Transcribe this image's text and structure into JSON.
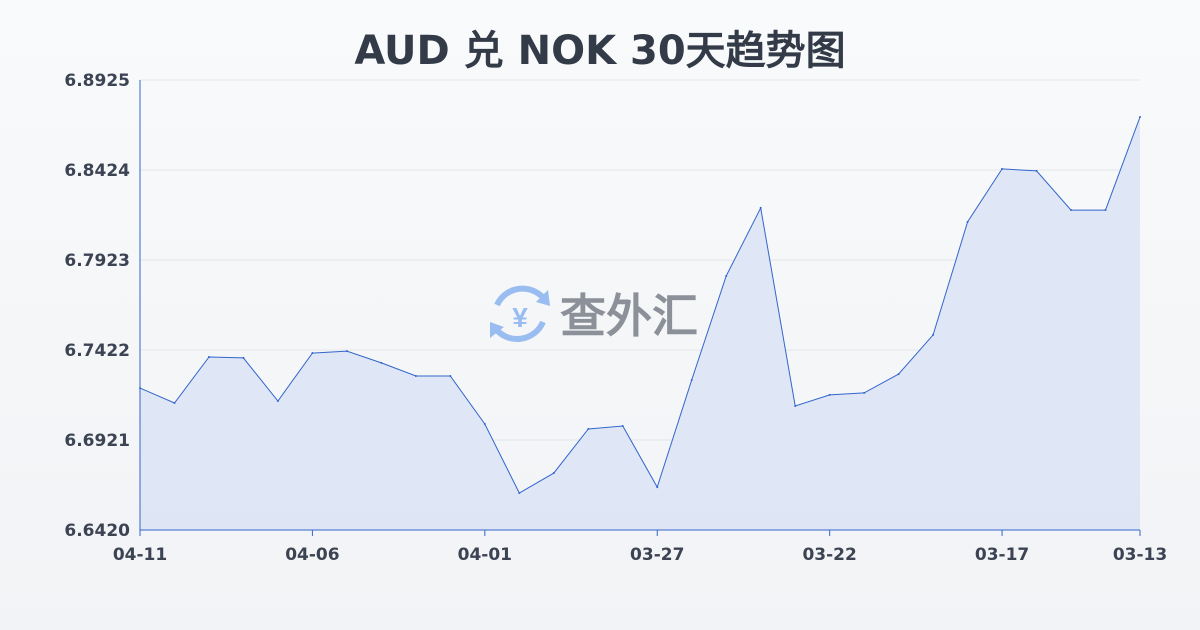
{
  "chart_data": {
    "type": "area",
    "title": "AUD 兑 NOK 30天趋势图",
    "xlabel": "",
    "ylabel": "",
    "x": [
      "04-11",
      "04-10",
      "04-09",
      "04-08",
      "04-07",
      "04-06",
      "04-05",
      "04-04",
      "04-03",
      "04-02",
      "04-01",
      "03-31",
      "03-30",
      "03-29",
      "03-28",
      "03-27",
      "03-26",
      "03-25",
      "03-24",
      "03-23",
      "03-22",
      "03-21",
      "03-20",
      "03-19",
      "03-18",
      "03-17",
      "03-16",
      "03-15",
      "03-14",
      "03-13"
    ],
    "values": [
      6.721,
      6.7127,
      6.7383,
      6.7378,
      6.7138,
      6.7405,
      6.7416,
      6.735,
      6.7277,
      6.7277,
      6.701,
      6.6626,
      6.6737,
      6.6982,
      6.6999,
      6.6659,
      6.7255,
      6.7834,
      6.8213,
      6.711,
      6.7172,
      6.7183,
      6.7288,
      6.7506,
      6.8135,
      6.843,
      6.8419,
      6.8201,
      6.8201,
      6.8719
    ],
    "x_tick_labels": [
      "04-11",
      "04-06",
      "04-01",
      "03-27",
      "03-22",
      "03-17",
      "03-13"
    ],
    "y_tick_labels": [
      "6.6420",
      "6.6921",
      "6.7422",
      "6.7923",
      "6.8424",
      "6.8925"
    ],
    "ylim": [
      6.642,
      6.8925
    ],
    "grid": true,
    "colors": {
      "line": "#3366cc",
      "fill": "#dae3f5",
      "grid": "#e3e6ea"
    }
  },
  "watermark": {
    "text": "查外汇",
    "icon": "yen-exchange-icon",
    "color": "#8ab4f0"
  }
}
